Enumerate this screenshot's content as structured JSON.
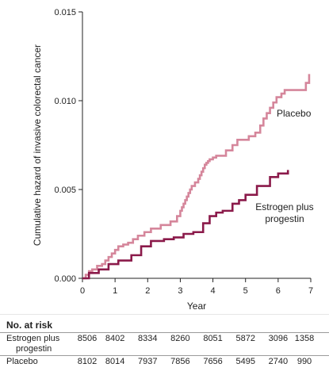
{
  "chart_data": {
    "type": "line",
    "xlabel": "Year",
    "ylabel": "Cumulative hazard of invasive colorectal cancer",
    "xlim": [
      0,
      7
    ],
    "ylim": [
      0,
      0.015
    ],
    "x_ticks": [
      "0",
      "1",
      "2",
      "3",
      "4",
      "5",
      "6",
      "7"
    ],
    "y_ticks": [
      "0.000",
      "0.005",
      "0.010",
      "0.015"
    ],
    "step": true,
    "series": [
      {
        "name": "Placebo",
        "color": "#d5869b",
        "x": [
          0,
          0.1,
          0.2,
          0.3,
          0.45,
          0.6,
          0.7,
          0.8,
          0.9,
          1.0,
          1.1,
          1.25,
          1.4,
          1.55,
          1.7,
          1.9,
          2.1,
          2.4,
          2.7,
          2.9,
          3.0,
          3.05,
          3.1,
          3.15,
          3.2,
          3.25,
          3.3,
          3.35,
          3.45,
          3.55,
          3.6,
          3.65,
          3.7,
          3.75,
          3.8,
          3.85,
          3.9,
          4.0,
          4.1,
          4.2,
          4.4,
          4.6,
          4.75,
          4.9,
          5.0,
          5.1,
          5.3,
          5.45,
          5.55,
          5.65,
          5.75,
          5.85,
          5.95,
          6.1,
          6.2,
          6.5,
          6.7,
          6.85,
          6.95
        ],
        "y": [
          0,
          0.0002,
          0.0004,
          0.0005,
          0.0007,
          0.0008,
          0.001,
          0.0012,
          0.0014,
          0.0016,
          0.0018,
          0.0019,
          0.002,
          0.0022,
          0.0024,
          0.0026,
          0.0028,
          0.003,
          0.0032,
          0.0035,
          0.0038,
          0.004,
          0.0042,
          0.0044,
          0.0046,
          0.0048,
          0.005,
          0.0052,
          0.0054,
          0.0056,
          0.0058,
          0.006,
          0.0062,
          0.0064,
          0.0065,
          0.0066,
          0.0067,
          0.0068,
          0.0069,
          0.0069,
          0.0072,
          0.0075,
          0.0078,
          0.0078,
          0.0078,
          0.008,
          0.0082,
          0.0086,
          0.009,
          0.0093,
          0.0096,
          0.0099,
          0.0102,
          0.0104,
          0.0106,
          0.0106,
          0.0106,
          0.011,
          0.0115
        ]
      },
      {
        "name": "Estrogen plus progestin",
        "color": "#8b1a4a",
        "x": [
          0,
          0.2,
          0.5,
          0.8,
          1.1,
          1.5,
          1.8,
          2.1,
          2.5,
          2.8,
          3.1,
          3.4,
          3.7,
          3.9,
          4.1,
          4.3,
          4.6,
          4.8,
          5.0,
          5.35,
          5.75,
          6.0,
          6.3
        ],
        "y": [
          0,
          0.0003,
          0.0005,
          0.0008,
          0.001,
          0.0013,
          0.0018,
          0.0021,
          0.0022,
          0.0023,
          0.0025,
          0.0026,
          0.0031,
          0.0035,
          0.0037,
          0.0038,
          0.0042,
          0.0044,
          0.0047,
          0.0052,
          0.0057,
          0.0059,
          0.0061
        ]
      }
    ],
    "annotations": [
      "Placebo",
      "Estrogen plus",
      "progestin"
    ]
  },
  "risk_table": {
    "heading": "No. at risk",
    "rows": [
      {
        "label_lines": [
          "Estrogen plus",
          "progestin"
        ],
        "values": [
          "8506",
          "8402",
          "8334",
          "8260",
          "8051",
          "5872",
          "3096",
          "1358"
        ]
      },
      {
        "label_lines": [
          "Placebo"
        ],
        "values": [
          "8102",
          "8014",
          "7937",
          "7856",
          "7656",
          "5495",
          "2740",
          "990"
        ]
      }
    ]
  }
}
